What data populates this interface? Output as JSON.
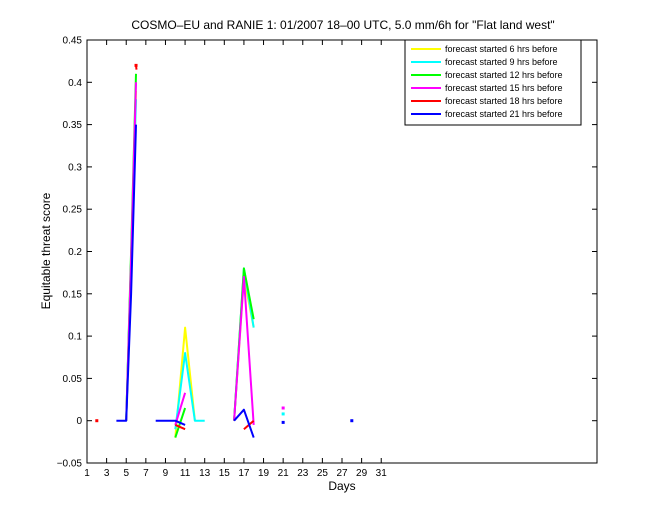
{
  "chart_data": {
    "type": "line",
    "title": "COSMO–EU and RANIE 1: 01/2007 18–00 UTC, 5.0 mm/6h for \"Flat land west\"",
    "xlabel": "Days",
    "ylabel": "Equitable threat score",
    "xlim": [
      1,
      53
    ],
    "ylim": [
      -0.05,
      0.45
    ],
    "xticks": [
      1,
      3,
      5,
      7,
      9,
      11,
      13,
      15,
      17,
      19,
      21,
      23,
      25,
      27,
      29,
      31
    ],
    "yticks": [
      -0.05,
      0,
      0.05,
      0.1,
      0.15,
      0.2,
      0.25,
      0.3,
      0.35,
      0.4,
      0.45
    ],
    "ytick_labels": [
      "−0.05",
      "0",
      "0.05",
      "0.1",
      "0.15",
      "0.2",
      "0.25",
      "0.3",
      "0.35",
      "0.4",
      "0.45"
    ],
    "grid": false,
    "legend_position": "top-right",
    "series": [
      {
        "name": "forecast started 6 hrs before",
        "color": "#ffff00",
        "segments": [
          [
            [
              5,
              0
            ],
            [
              5.5,
              0.19
            ],
            [
              6,
              0.39
            ]
          ],
          [
            [
              10,
              -0.02
            ],
            [
              11,
              0.11
            ],
            [
              12,
              0
            ]
          ],
          [
            [
              16,
              0
            ],
            [
              17,
              0.17
            ],
            [
              18,
              0.11
            ]
          ]
        ],
        "points": []
      },
      {
        "name": "forecast started 9 hrs before",
        "color": "#00ffff",
        "segments": [
          [
            [
              5,
              0
            ],
            [
              5.5,
              0.19
            ],
            [
              6,
              0.38
            ]
          ],
          [
            [
              10,
              -0.01
            ],
            [
              11,
              0.08
            ],
            [
              12,
              0
            ],
            [
              13,
              0
            ]
          ],
          [
            [
              16,
              0
            ],
            [
              17,
              0.18
            ],
            [
              18,
              0.11
            ]
          ]
        ],
        "points": [
          [
            21,
            0.008
          ]
        ]
      },
      {
        "name": "forecast started 12 hrs before",
        "color": "#00ff00",
        "segments": [
          [
            [
              5,
              0
            ],
            [
              5.5,
              0.2
            ],
            [
              6,
              0.41
            ]
          ],
          [
            [
              10,
              -0.02
            ],
            [
              11,
              0.015
            ]
          ],
          [
            [
              16,
              0
            ],
            [
              17,
              0.18
            ],
            [
              18,
              0.12
            ]
          ]
        ],
        "points": []
      },
      {
        "name": "forecast started 15 hrs before",
        "color": "#ff00ff",
        "segments": [
          [
            [
              5,
              0
            ],
            [
              5.5,
              0.19
            ],
            [
              6,
              0.4
            ]
          ],
          [
            [
              10,
              -0.005
            ],
            [
              11,
              0.033
            ]
          ],
          [
            [
              16,
              0
            ],
            [
              17,
              0.17
            ],
            [
              18,
              -0.005
            ]
          ]
        ],
        "points": [
          [
            21,
            0.015
          ]
        ]
      },
      {
        "name": "forecast started 18 hrs before",
        "color": "#ff0000",
        "segments": [
          [
            [
              6,
              0.42
            ],
            [
              6.05,
              0.415
            ]
          ],
          [
            [
              10,
              -0.005
            ],
            [
              11,
              -0.01
            ]
          ],
          [
            [
              17,
              -0.01
            ],
            [
              18,
              0
            ]
          ]
        ],
        "points": [
          [
            2,
            0
          ],
          [
            6,
            0.42
          ]
        ]
      },
      {
        "name": "forecast started 21 hrs before",
        "color": "#0000ff",
        "segments": [
          [
            [
              4,
              0
            ],
            [
              5,
              0
            ],
            [
              5.5,
              0.15
            ],
            [
              6,
              0.35
            ]
          ],
          [
            [
              8,
              0
            ],
            [
              10,
              0
            ],
            [
              11,
              -0.005
            ]
          ],
          [
            [
              16,
              0
            ],
            [
              17,
              0.013
            ],
            [
              18,
              -0.02
            ]
          ]
        ],
        "points": [
          [
            21,
            -0.002
          ],
          [
            28,
            0
          ]
        ]
      }
    ]
  }
}
